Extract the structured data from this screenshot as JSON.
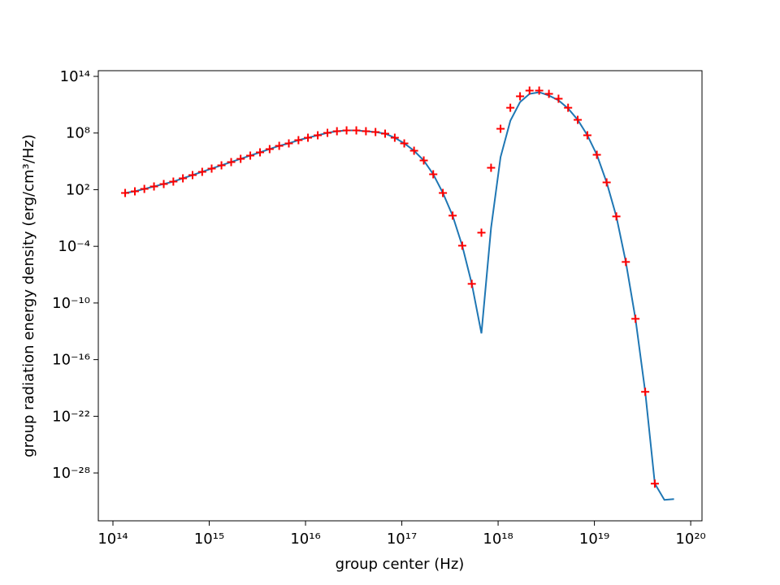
{
  "chart_data": {
    "type": "line",
    "xlabel": "group center (Hz)",
    "ylabel": "group radiation energy density (erg/cm³/Hz)",
    "xscale": "log",
    "yscale": "log",
    "xlim": [
      70500000000000.0,
      1.31e+20
    ],
    "ylim": [
      8.5e-34,
      400000000000000.0
    ],
    "xticks": [
      {
        "value": 100000000000000.0,
        "label": "10¹⁴"
      },
      {
        "value": 1000000000000000.0,
        "label": "10¹⁵"
      },
      {
        "value": 1e+16,
        "label": "10¹⁶"
      },
      {
        "value": 1e+17,
        "label": "10¹⁷"
      },
      {
        "value": 1e+18,
        "label": "10¹⁸"
      },
      {
        "value": 1e+19,
        "label": "10¹⁹"
      },
      {
        "value": 1e+20,
        "label": "10²⁰"
      }
    ],
    "yticks": [
      {
        "value": 100000000000000.0,
        "label": "10¹⁴"
      },
      {
        "value": 100000000.0,
        "label": "10⁸"
      },
      {
        "value": 100.0,
        "label": "10²"
      },
      {
        "value": 0.0001,
        "label": "10⁻⁴"
      },
      {
        "value": 1e-10,
        "label": "10⁻¹⁰"
      },
      {
        "value": 1e-16,
        "label": "10⁻¹⁶"
      },
      {
        "value": 1e-22,
        "label": "10⁻²²"
      },
      {
        "value": 1e-28,
        "label": "10⁻²⁸"
      }
    ],
    "x": [
      134000000000000.0,
      169000000000000.0,
      212000000000000.0,
      267000000000000.0,
      337000000000000.0,
      424000000000000.0,
      533000000000000.0,
      671000000000000.0,
      845000000000000.0,
      1060000000000000.0,
      1340000000000000.0,
      1690000000000000.0,
      2120000000000000.0,
      2670000000000000.0,
      3370000000000000.0,
      4240000000000000.0,
      5330000000000000.0,
      6710000000000000.0,
      8450000000000000.0,
      1.06e+16,
      1.34e+16,
      1.69e+16,
      2.12e+16,
      2.67e+16,
      3.37e+16,
      4.24e+16,
      5.33e+16,
      6.71e+16,
      8.45e+16,
      1.06e+17,
      1.34e+17,
      1.69e+17,
      2.12e+17,
      2.67e+17,
      3.37e+17,
      4.24e+17,
      5.33e+17,
      6.71e+17,
      8.45e+17,
      1.06e+18,
      1.34e+18,
      1.69e+18,
      2.12e+18,
      2.67e+18,
      3.37e+18,
      4.24e+18,
      5.33e+18,
      6.71e+18,
      8.45e+18,
      1.06e+19,
      1.34e+19,
      1.69e+19,
      2.12e+19,
      2.67e+19,
      3.37e+19,
      4.24e+19,
      5.33e+19,
      6.71e+19
    ],
    "series": [
      {
        "type": "line",
        "color": "#1f77b4",
        "values": [
          45.0,
          67.0,
          120.0,
          220.0,
          400.0,
          720.0,
          1600.0,
          3500.0,
          7800.0,
          17200.0,
          38000.0,
          84000.0,
          185000.0,
          410000.0,
          900000.0,
          2000000.0,
          4400000.0,
          8000000.0,
          17600000.0,
          32000000.0,
          58000000.0,
          104000000.0,
          155000000.0,
          190000000.0,
          190000000.0,
          155000000.0,
          127000000.0,
          86000000.0,
          32000000.0,
          8000000.0,
          1340000.0,
          124000.0,
          4300.0,
          45.0,
          0.177,
          0.000117,
          1.06e-08,
          6e-14,
          0.0091,
          280000.0,
          2000000000.0,
          190000000000.0,
          1400000000000.0,
          2100000000000.0,
          940000000000.0,
          290000000000.0,
          40000000000.0,
          2500000000.0,
          58000000.0,
          500000.0,
          590.0,
          0.145,
          2.2e-06,
          2.1e-12,
          3.9e-20,
          7.4e-30,
          1.4e-31,
          1.7e-31
        ]
      },
      {
        "type": "scatter",
        "marker": "+",
        "color": "#ff0000",
        "values": [
          45.0,
          67.0,
          120.0,
          220.0,
          400.0,
          720.0,
          1600.0,
          3500.0,
          7800.0,
          17200.0,
          38000.0,
          84000.0,
          185000.0,
          410000.0,
          900000.0,
          2000000.0,
          4400000.0,
          8000000.0,
          17600000.0,
          32000000.0,
          58000000.0,
          104000000.0,
          155000000.0,
          190000000.0,
          190000000.0,
          155000000.0,
          127000000.0,
          86000000.0,
          32000000.0,
          8000000.0,
          1340000.0,
          124000.0,
          4300.0,
          45.0,
          0.177,
          0.000117,
          1.06e-08,
          0.0028,
          21000.0,
          280000000.0,
          48000000000.0,
          770000000000.0,
          3100000000000.0,
          3100000000000.0,
          1400000000000.0,
          430000000000.0,
          48000000000.0,
          2500000000.0,
          58000000.0,
          500000.0,
          590.0,
          0.145,
          2.2e-06,
          2.1e-12,
          3.9e-20,
          7.4e-30,
          null,
          null
        ]
      }
    ]
  }
}
